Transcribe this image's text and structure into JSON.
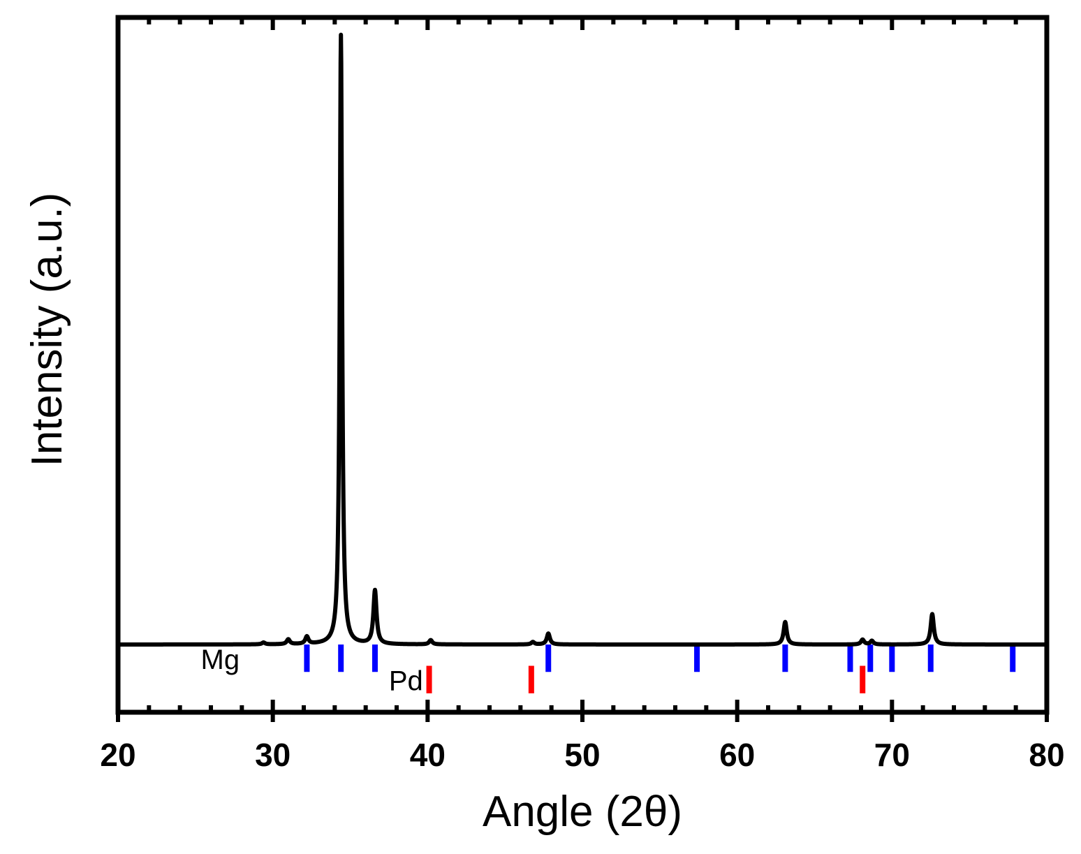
{
  "chart_data": {
    "type": "line",
    "xlabel": "Angle (2θ)",
    "ylabel": "Intensity (a.u.)",
    "xlim": [
      20,
      80
    ],
    "ylim": [
      -0.1,
      1.0
    ],
    "x_ticks": [
      20,
      30,
      40,
      50,
      60,
      70,
      80
    ],
    "x_tick_labels": [
      "20",
      "30",
      "40",
      "50",
      "60",
      "70",
      "80"
    ],
    "y_ticks_shown": false,
    "grid": false,
    "colors": {
      "pattern": "#000000",
      "mg_ref": "#0000ff",
      "pd_ref": "#ff0000"
    },
    "series": [
      {
        "baseline": 0.0,
        "peaks": [
          {
            "x": 29.4,
            "y": 0.003
          },
          {
            "x": 31.0,
            "y": 0.008
          },
          {
            "x": 32.2,
            "y": 0.012
          },
          {
            "x": 34.4,
            "y": 1.0
          },
          {
            "x": 36.6,
            "y": 0.088
          },
          {
            "x": 40.2,
            "y": 0.007
          },
          {
            "x": 46.8,
            "y": 0.004
          },
          {
            "x": 47.8,
            "y": 0.018
          },
          {
            "x": 63.1,
            "y": 0.037
          },
          {
            "x": 68.1,
            "y": 0.008
          },
          {
            "x": 68.7,
            "y": 0.006
          },
          {
            "x": 72.6,
            "y": 0.05
          }
        ]
      }
    ],
    "reference_markers": [
      {
        "label": "Mg",
        "positions": [
          32.2,
          34.4,
          36.6,
          47.8,
          57.4,
          63.1,
          67.3,
          68.6,
          70.0,
          72.5,
          77.8
        ],
        "y_top": 0.0,
        "y_bottom": -0.045
      },
      {
        "label": "Pd",
        "positions": [
          40.1,
          46.7,
          68.1
        ],
        "y_top": -0.035,
        "y_bottom": -0.08
      }
    ]
  }
}
